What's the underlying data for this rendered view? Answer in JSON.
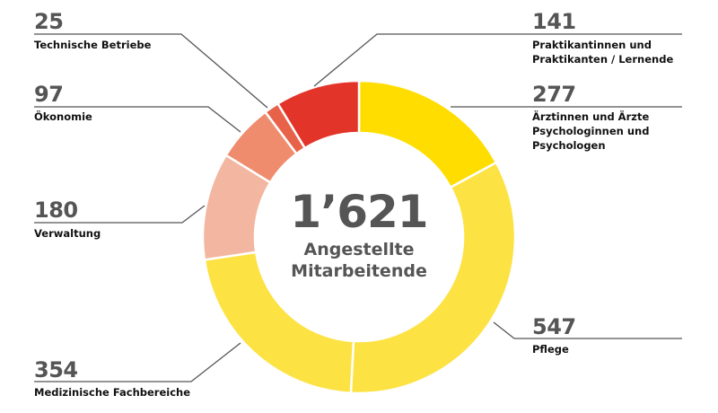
{
  "chart_data": {
    "type": "pie",
    "variant": "donut",
    "title": "",
    "center_total": "1’621",
    "center_label": "Angestellte\nMitarbeitende",
    "categories": [
      "Praktikantinnen und Praktikanten / Lernende",
      "Ärztinnen und Ärzte Psychologinnen und Psychologen",
      "Pflege",
      "Medizinische Fachbereiche",
      "Verwaltung",
      "Ökonomie",
      "Technische Betriebe"
    ],
    "values": [
      141,
      277,
      547,
      354,
      180,
      97,
      25
    ],
    "colors": [
      "#e3342a",
      "#ffdd00",
      "#fde244",
      "#fde244",
      "#f3b6a0",
      "#ef8c6e",
      "#e8624a"
    ],
    "order": "clockwise from top: Ärztinnen, Pflege, Medizinische Fachbereiche, Verwaltung, Ökonomie, Technische Betriebe, Praktikanten",
    "legend_position": "callouts"
  },
  "callouts": {
    "technische": {
      "value": "25",
      "label": "Technische Betriebe"
    },
    "oekonomie": {
      "value": "97",
      "label": "Ökonomie"
    },
    "verwaltung": {
      "value": "180",
      "label": "Verwaltung"
    },
    "medizinische": {
      "value": "354",
      "label": "Medizinische Fachbereiche"
    },
    "praktikanten": {
      "value": "141",
      "label": "Praktikantinnen und\nPraktikanten / Lernende"
    },
    "aerzte": {
      "value": "277",
      "label": "Ärztinnen und Ärzte\nPsychologinnen und\nPsychologen"
    },
    "pflege": {
      "value": "547",
      "label": "Pflege"
    }
  },
  "center": {
    "total": "1’621",
    "label": "Angestellte\nMitarbeitende"
  }
}
